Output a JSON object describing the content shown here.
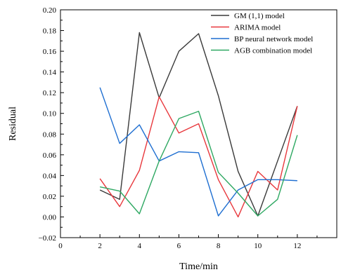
{
  "chart_data": {
    "type": "line",
    "title": "",
    "xlabel": "Time/min",
    "ylabel": "Residual",
    "xlim": [
      0,
      14
    ],
    "ylim": [
      -0.02,
      0.2
    ],
    "x_ticks": [
      "0",
      "2",
      "4",
      "6",
      "8",
      "10",
      "12"
    ],
    "y_ticks": [
      "−0.02",
      "0.00",
      "0.02",
      "0.04",
      "0.06",
      "0.08",
      "0.10",
      "0.12",
      "0.14",
      "0.16",
      "0.18",
      "0.20"
    ],
    "x_tick_values": [
      0,
      2,
      4,
      6,
      8,
      10,
      12
    ],
    "y_tick_values": [
      -0.02,
      0.0,
      0.02,
      0.04,
      0.06,
      0.08,
      0.1,
      0.12,
      0.14,
      0.16,
      0.18,
      0.2
    ],
    "grid": false,
    "legend_position": "top-right",
    "series": [
      {
        "name": "GM (1,1) model",
        "color": "#3a3a3a",
        "x": [
          2,
          3,
          4,
          5,
          6,
          7,
          8,
          9,
          10,
          11,
          12
        ],
        "y": [
          0.026,
          0.017,
          0.178,
          0.115,
          0.16,
          0.177,
          0.117,
          0.044,
          0.001,
          0.054,
          0.107
        ]
      },
      {
        "name": "ARIMA model",
        "color": "#e8383d",
        "x": [
          2,
          3,
          4,
          5,
          6,
          7,
          8,
          9,
          10,
          11,
          12
        ],
        "y": [
          0.037,
          0.01,
          0.045,
          0.116,
          0.081,
          0.09,
          0.036,
          0.0,
          0.044,
          0.026,
          0.107
        ]
      },
      {
        "name": "BP neural network model",
        "color": "#1f6fd1",
        "x": [
          2,
          3,
          4,
          5,
          6,
          7,
          8,
          9,
          10,
          11,
          12
        ],
        "y": [
          0.125,
          0.071,
          0.089,
          0.054,
          0.063,
          0.062,
          0.001,
          0.026,
          0.036,
          0.036,
          0.035
        ]
      },
      {
        "name": "AGB combination model",
        "color": "#2ea862",
        "x": [
          2,
          3,
          4,
          5,
          6,
          7,
          8,
          9,
          10,
          11,
          12
        ],
        "y": [
          0.029,
          0.025,
          0.003,
          0.054,
          0.095,
          0.102,
          0.043,
          0.023,
          0.001,
          0.017,
          0.079
        ]
      }
    ]
  }
}
